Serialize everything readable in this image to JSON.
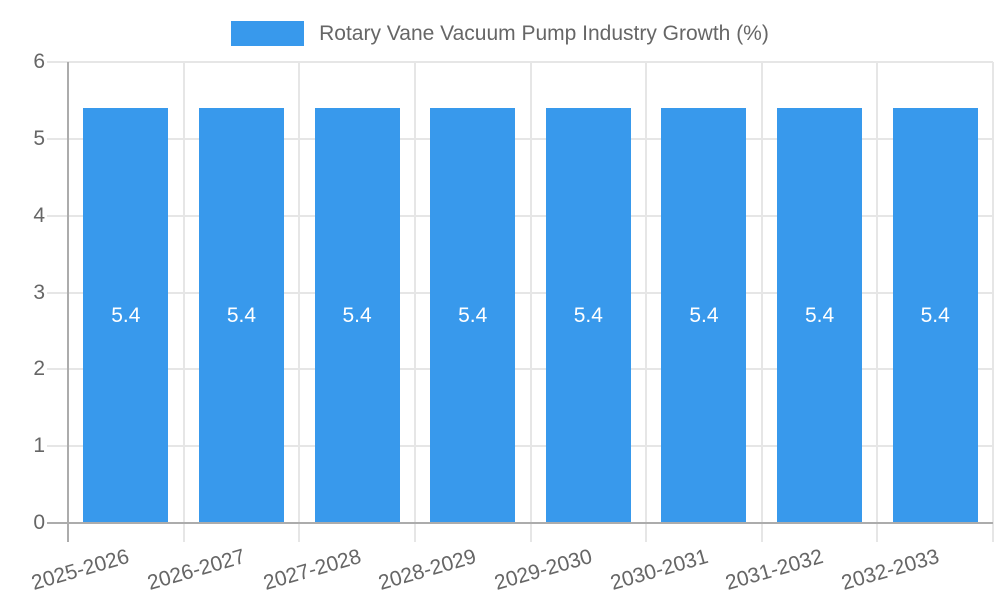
{
  "chart_data": {
    "type": "bar",
    "title": "Rotary Vane Vacuum Pump Industry Growth (%)",
    "categories": [
      "2025-2026",
      "2026-2027",
      "2027-2028",
      "2028-2029",
      "2029-2030",
      "2030-2031",
      "2031-2032",
      "2032-2033"
    ],
    "values": [
      5.4,
      5.4,
      5.4,
      5.4,
      5.4,
      5.4,
      5.4,
      5.4
    ],
    "bar_value_labels": [
      "5.4",
      "5.4",
      "5.4",
      "5.4",
      "5.4",
      "5.4",
      "5.4",
      "5.4"
    ],
    "xlabel": "",
    "ylabel": "",
    "ylim": [
      0,
      6
    ],
    "yticks": [
      0,
      1,
      2,
      3,
      4,
      5,
      6
    ],
    "grid": true,
    "legend_position": "top-center",
    "x_label_rotation_deg": -16,
    "colors": {
      "bar": "#3899EC",
      "bar_value_label": "#FFFFFF",
      "axis_text": "#666666",
      "gridline": "#E6E6E6",
      "axis_line": "#ACACAC",
      "background": "#FFFFFF"
    }
  }
}
